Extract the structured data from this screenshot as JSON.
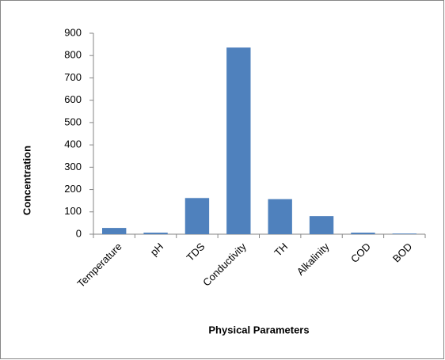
{
  "chart_data": {
    "type": "bar",
    "x_label": "Physical Parameters",
    "y_label": "Concentration",
    "categories": [
      "Temperature",
      "pH",
      "TDS",
      "Conductivity",
      "TH",
      "Alkalinity",
      "COD",
      "BOD"
    ],
    "values": [
      28,
      7,
      162,
      836,
      157,
      81,
      7,
      3
    ],
    "color": "#4f81bd",
    "ylim": [
      0,
      900
    ],
    "yticks": [
      0,
      100,
      200,
      300,
      400,
      500,
      600,
      700,
      800,
      900
    ],
    "grid": false
  }
}
